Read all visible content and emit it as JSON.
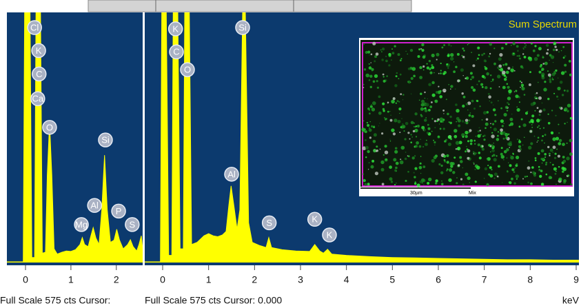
{
  "chart_data": [
    {
      "type": "area",
      "color": "#ffff00",
      "footer": "Full Scale 575 cts Cursor:",
      "xlim": [
        -0.41,
        2.58
      ],
      "ylim": [
        0,
        575
      ],
      "xticks": [
        0,
        1,
        2
      ],
      "x": [
        -0.41,
        -0.05,
        -0.02,
        0.1,
        0.14,
        0.2,
        0.23,
        0.33,
        0.37,
        0.44,
        0.48,
        0.53,
        0.58,
        0.63,
        0.7,
        0.8,
        0.9,
        1.0,
        1.1,
        1.2,
        1.25,
        1.3,
        1.38,
        1.44,
        1.49,
        1.55,
        1.62,
        1.68,
        1.74,
        1.8,
        1.87,
        1.95,
        2.01,
        2.07,
        2.15,
        2.25,
        2.31,
        2.37,
        2.45,
        2.5,
        2.55,
        2.58
      ],
      "values": [
        0,
        0,
        575,
        575,
        10,
        10,
        575,
        575,
        20,
        22,
        200,
        321,
        200,
        30,
        18,
        22,
        25,
        24,
        28,
        40,
        56,
        40,
        35,
        60,
        79,
        55,
        40,
        120,
        246,
        120,
        45,
        50,
        75,
        50,
        30,
        40,
        51,
        35,
        25,
        40,
        60,
        30
      ],
      "peak_labels": [
        {
          "text": "Cl",
          "x": 0.2,
          "y": 540
        },
        {
          "text": "K",
          "x": 0.29,
          "y": 487
        },
        {
          "text": "C",
          "x": 0.3,
          "y": 433
        },
        {
          "text": "Ca",
          "x": 0.27,
          "y": 376
        },
        {
          "text": "O",
          "x": 0.53,
          "y": 310
        },
        {
          "text": "Si",
          "x": 1.76,
          "y": 281
        },
        {
          "text": "Al",
          "x": 1.52,
          "y": 130
        },
        {
          "text": "Mg",
          "x": 1.23,
          "y": 86
        },
        {
          "text": "P",
          "x": 2.05,
          "y": 117
        },
        {
          "text": "S",
          "x": 2.35,
          "y": 86
        }
      ]
    },
    {
      "type": "area",
      "color": "#ffff00",
      "title": "Sum Spectrum",
      "footer": "Full Scale 575 cts Cursor: 0.000",
      "x_label": "keV",
      "inset_scale": "30µm",
      "inset_label": "Mix",
      "xlim": [
        -0.39,
        9.06
      ],
      "ylim": [
        0,
        575
      ],
      "xticks": [
        0,
        1,
        2,
        3,
        4,
        5,
        6,
        7,
        8,
        9
      ],
      "x": [
        -0.39,
        -0.05,
        -0.02,
        0.08,
        0.13,
        0.2,
        0.23,
        0.33,
        0.38,
        0.45,
        0.48,
        0.58,
        0.63,
        0.75,
        0.9,
        1.0,
        1.1,
        1.2,
        1.3,
        1.38,
        1.44,
        1.49,
        1.55,
        1.62,
        1.68,
        1.74,
        1.8,
        1.87,
        1.95,
        2.1,
        2.25,
        2.31,
        2.37,
        2.6,
        2.9,
        3.2,
        3.31,
        3.42,
        3.5,
        3.59,
        3.68,
        4.0,
        4.5,
        5.0,
        5.5,
        6.0,
        6.5,
        7.0,
        7.5,
        8.0,
        8.5,
        9.06
      ],
      "values": [
        0,
        0,
        575,
        575,
        15,
        15,
        575,
        575,
        30,
        30,
        575,
        575,
        40,
        45,
        60,
        65,
        60,
        58,
        62,
        70,
        130,
        175,
        130,
        75,
        120,
        575,
        575,
        90,
        45,
        38,
        33,
        56,
        33,
        28,
        25,
        24,
        40,
        25,
        20,
        29,
        18,
        15,
        12,
        10,
        9,
        8,
        7,
        6,
        5,
        5,
        4,
        4
      ],
      "peak_labels": [
        {
          "text": "K",
          "x": 0.28,
          "y": 537
        },
        {
          "text": "C",
          "x": 0.3,
          "y": 484
        },
        {
          "text": "O",
          "x": 0.54,
          "y": 443
        },
        {
          "text": "Si",
          "x": 1.74,
          "y": 540
        },
        {
          "text": "Al",
          "x": 1.5,
          "y": 202
        },
        {
          "text": "S",
          "x": 2.32,
          "y": 90
        },
        {
          "text": "K",
          "x": 3.31,
          "y": 98
        },
        {
          "text": "K",
          "x": 3.63,
          "y": 62
        }
      ]
    }
  ]
}
